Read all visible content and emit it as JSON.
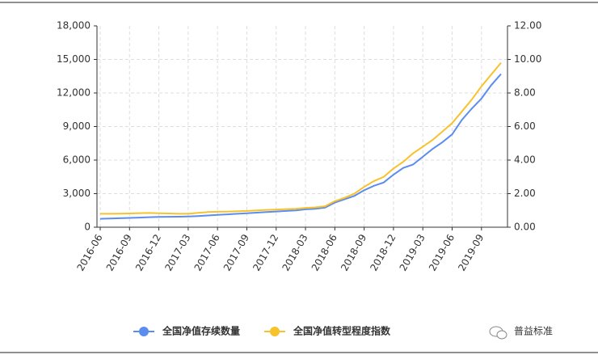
{
  "chart_data": {
    "type": "line",
    "categories": [
      "2016-06",
      null,
      null,
      "2016-09",
      null,
      null,
      "2016-12",
      null,
      null,
      "2017-03",
      null,
      null,
      "2017-06",
      null,
      null,
      "2017-09",
      null,
      null,
      "2017-12",
      null,
      null,
      "2018-03",
      null,
      null,
      "2018-06",
      null,
      null,
      "2018-09",
      null,
      null,
      "2018-12",
      null,
      null,
      "2019-03",
      null,
      null,
      "2019-06",
      null,
      null,
      "2019-09",
      null,
      null
    ],
    "series": [
      {
        "name": "全国净值存续数量",
        "color": "#5b8def",
        "axis": "y",
        "values": [
          750,
          780,
          800,
          830,
          860,
          900,
          920,
          930,
          940,
          960,
          1000,
          1050,
          1100,
          1150,
          1200,
          1250,
          1300,
          1350,
          1400,
          1450,
          1500,
          1600,
          1650,
          1750,
          2200,
          2500,
          2800,
          3300,
          3700,
          4000,
          4700,
          5300,
          5600,
          6300,
          7000,
          7600,
          8300,
          9600,
          10600,
          11500,
          12700,
          13700
        ]
      },
      {
        "name": "全国净值转型程度指数",
        "color": "#f8c22d",
        "axis": "y2",
        "values": [
          0.8,
          0.8,
          0.81,
          0.82,
          0.84,
          0.85,
          0.83,
          0.82,
          0.8,
          0.8,
          0.86,
          0.9,
          0.92,
          0.93,
          0.95,
          0.97,
          1.0,
          1.03,
          1.05,
          1.08,
          1.1,
          1.15,
          1.18,
          1.25,
          1.55,
          1.75,
          2.0,
          2.4,
          2.75,
          3.0,
          3.5,
          3.9,
          4.4,
          4.8,
          5.2,
          5.7,
          6.2,
          6.9,
          7.6,
          8.4,
          9.1,
          9.8
        ]
      }
    ],
    "ylim": [
      0,
      18000
    ],
    "yticks": [
      0,
      {
        "value": 3000,
        "label": "3,000"
      },
      {
        "value": 6000,
        "label": "6,000"
      },
      {
        "value": 9000,
        "label": "9,000"
      },
      {
        "value": 12000,
        "label": "12,000"
      },
      {
        "value": 15000,
        "label": "15,000"
      },
      {
        "value": 18000,
        "label": "18,000"
      }
    ],
    "y2lim": [
      0,
      12
    ],
    "y2ticks": [
      {
        "value": 0,
        "label": "0.00"
      },
      {
        "value": 2,
        "label": "2.00"
      },
      {
        "value": 4,
        "label": "4.00"
      },
      {
        "value": 6,
        "label": "6.00"
      },
      {
        "value": 8,
        "label": "8.00"
      },
      {
        "value": 10,
        "label": "10.00"
      },
      {
        "value": 12,
        "label": "12.00"
      }
    ],
    "grid": true,
    "legend": "bottom",
    "annotation": "普益标准"
  }
}
